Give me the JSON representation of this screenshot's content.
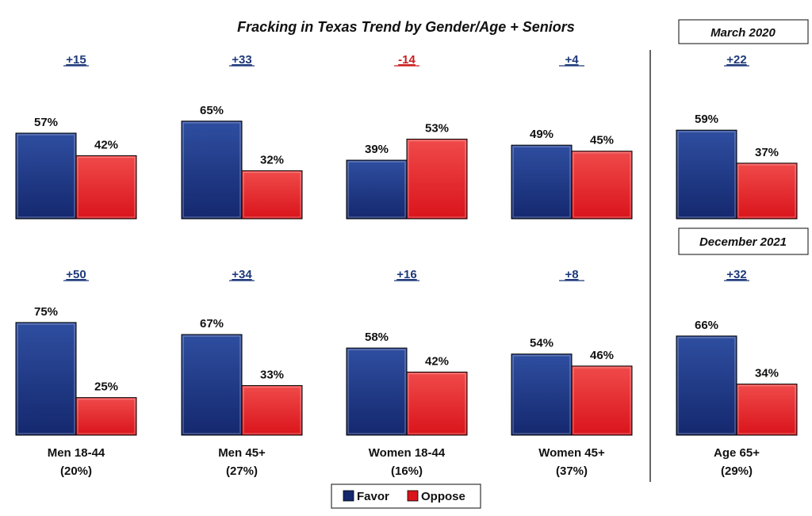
{
  "colors": {
    "favor": "#14286e",
    "favor_light": "#2f4ea0",
    "oppose": "#d9141b",
    "oppose_light": "#f04a4a",
    "margin_positive": "#1f3a7a",
    "margin_negative": "#cc1f1f",
    "divider": "#333333"
  },
  "chart_data": {
    "type": "bar",
    "title": "Fracking in Texas Trend by Gender/Age + Seniors",
    "series_names": [
      "Favor",
      "Oppose"
    ],
    "legend": {
      "position": "bottom-center",
      "items": [
        "Favor",
        "Oppose"
      ]
    },
    "ylim": [
      0,
      100
    ],
    "grid": false,
    "period_labels": [
      "March 2020",
      "December 2021"
    ],
    "groups": [
      {
        "label": "Men 18-44",
        "share": "(20%)",
        "periods": [
          {
            "period": "March 2020",
            "favor": 57,
            "oppose": 42,
            "margin": "+15"
          },
          {
            "period": "December 2021",
            "favor": 75,
            "oppose": 25,
            "margin": "+50"
          }
        ]
      },
      {
        "label": "Men 45+",
        "share": "(27%)",
        "periods": [
          {
            "period": "March 2020",
            "favor": 65,
            "oppose": 32,
            "margin": "+33"
          },
          {
            "period": "December 2021",
            "favor": 67,
            "oppose": 33,
            "margin": "+34"
          }
        ]
      },
      {
        "label": "Women 18-44",
        "share": "(16%)",
        "periods": [
          {
            "period": "March 2020",
            "favor": 39,
            "oppose": 53,
            "margin": "-14"
          },
          {
            "period": "December 2021",
            "favor": 58,
            "oppose": 42,
            "margin": "+16"
          }
        ]
      },
      {
        "label": "Women 45+",
        "share": "(37%)",
        "periods": [
          {
            "period": "March 2020",
            "favor": 49,
            "oppose": 45,
            "margin": "+4"
          },
          {
            "period": "December 2021",
            "favor": 54,
            "oppose": 46,
            "margin": "+8"
          }
        ]
      },
      {
        "label": "Age 65+",
        "share": "(29%)",
        "periods": [
          {
            "period": "March 2020",
            "favor": 59,
            "oppose": 37,
            "margin": "+22"
          },
          {
            "period": "December 2021",
            "favor": 66,
            "oppose": 34,
            "margin": "+32"
          }
        ]
      }
    ]
  }
}
